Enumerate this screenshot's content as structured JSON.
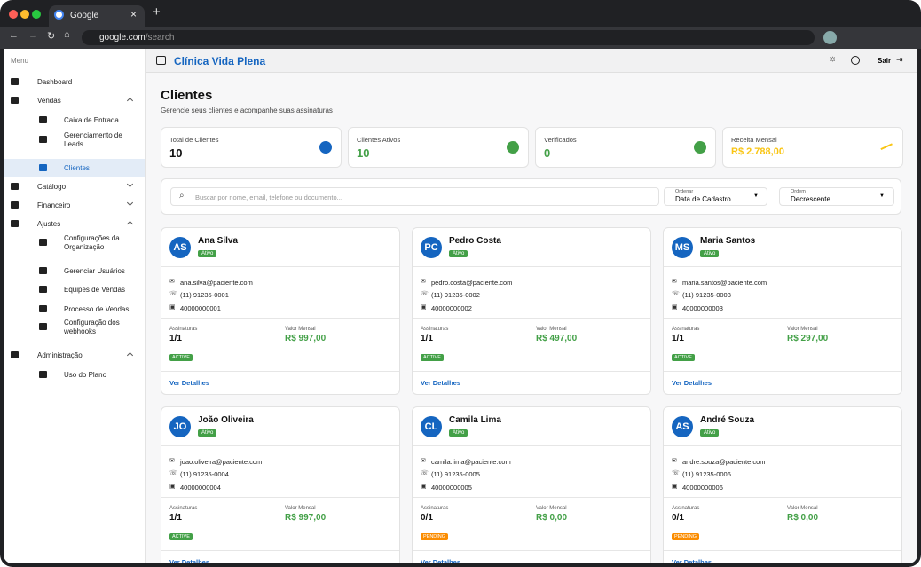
{
  "browser": {
    "tab_title": "Google",
    "url_host": "google.com",
    "url_path": "/search"
  },
  "sidebar": {
    "menu_label": "Menu",
    "items": [
      "Dashboard",
      "Vendas",
      "Caixa de Entrada",
      "Gerenciamento de Leads",
      "Clientes",
      "Catálogo",
      "Financeiro",
      "Ajustes",
      "Configurações da Organização",
      "Gerenciar Usuários",
      "Equipes de Vendas",
      "Processo de Vendas",
      "Configuração dos webhooks",
      "Administração",
      "Uso do Plano"
    ]
  },
  "header": {
    "title": "Clínica Vida Plena",
    "logout": "Sair"
  },
  "page": {
    "title": "Clientes",
    "subtitle": "Gerencie seus clientes e acompanhe suas assinaturas"
  },
  "stats": [
    {
      "label": "Total de Clientes",
      "value": 10,
      "color": "#1565c0"
    },
    {
      "label": "Clientes Ativos",
      "value": 10,
      "color": "#43a047"
    },
    {
      "label": "Verificados",
      "value": 0,
      "color": "#43a047"
    },
    {
      "label": "Receita Mensal",
      "value": "R$ 2.788,00",
      "color": "#f9c514"
    }
  ],
  "filters": {
    "search_placeholder": "Buscar por nome, email, telefone ou documento...",
    "sort_label": "Ordenar",
    "sort_value": "Data de Cadastro",
    "order_label": "Ordem",
    "order_value": "Decrescente"
  },
  "card_labels": {
    "subscriptions": "Assinaturas",
    "monthly_value": "Valor Mensal",
    "details": "Ver Detalhes"
  },
  "clients": [
    {
      "initials": "AS",
      "name": "Ana Silva",
      "status": "Ativo",
      "email": "ana.silva@paciente.com",
      "phone": "(11) 91235-0001",
      "document": "40000000001",
      "subscriptions": "1/1",
      "value": "R$ 997,00",
      "badge": "ACTIVE",
      "badge_color": "#43a047"
    },
    {
      "initials": "PC",
      "name": "Pedro Costa",
      "status": "Ativo",
      "email": "pedro.costa@paciente.com",
      "phone": "(11) 91235-0002",
      "document": "40000000002",
      "subscriptions": "1/1",
      "value": "R$ 497,00",
      "badge": "ACTIVE",
      "badge_color": "#43a047"
    },
    {
      "initials": "MS",
      "name": "Maria Santos",
      "status": "Ativo",
      "email": "maria.santos@paciente.com",
      "phone": "(11) 91235-0003",
      "document": "40000000003",
      "subscriptions": "1/1",
      "value": "R$ 297,00",
      "badge": "ACTIVE",
      "badge_color": "#43a047"
    },
    {
      "initials": "JO",
      "name": "João Oliveira",
      "status": "Ativo",
      "email": "joao.oliveira@paciente.com",
      "phone": "(11) 91235-0004",
      "document": "40000000004",
      "subscriptions": "1/1",
      "value": "R$ 997,00",
      "badge": "ACTIVE",
      "badge_color": "#43a047"
    },
    {
      "initials": "CL",
      "name": "Camila Lima",
      "status": "Ativo",
      "email": "camila.lima@paciente.com",
      "phone": "(11) 91235-0005",
      "document": "40000000005",
      "subscriptions": "0/1",
      "value": "R$ 0,00",
      "badge": "PENDING",
      "badge_color": "#fb8c00"
    },
    {
      "initials": "AS",
      "name": "André Souza",
      "status": "Ativo",
      "email": "andre.souza@paciente.com",
      "phone": "(11) 91235-0006",
      "document": "40000000006",
      "subscriptions": "0/1",
      "value": "R$ 0,00",
      "badge": "PENDING",
      "badge_color": "#fb8c00"
    }
  ]
}
